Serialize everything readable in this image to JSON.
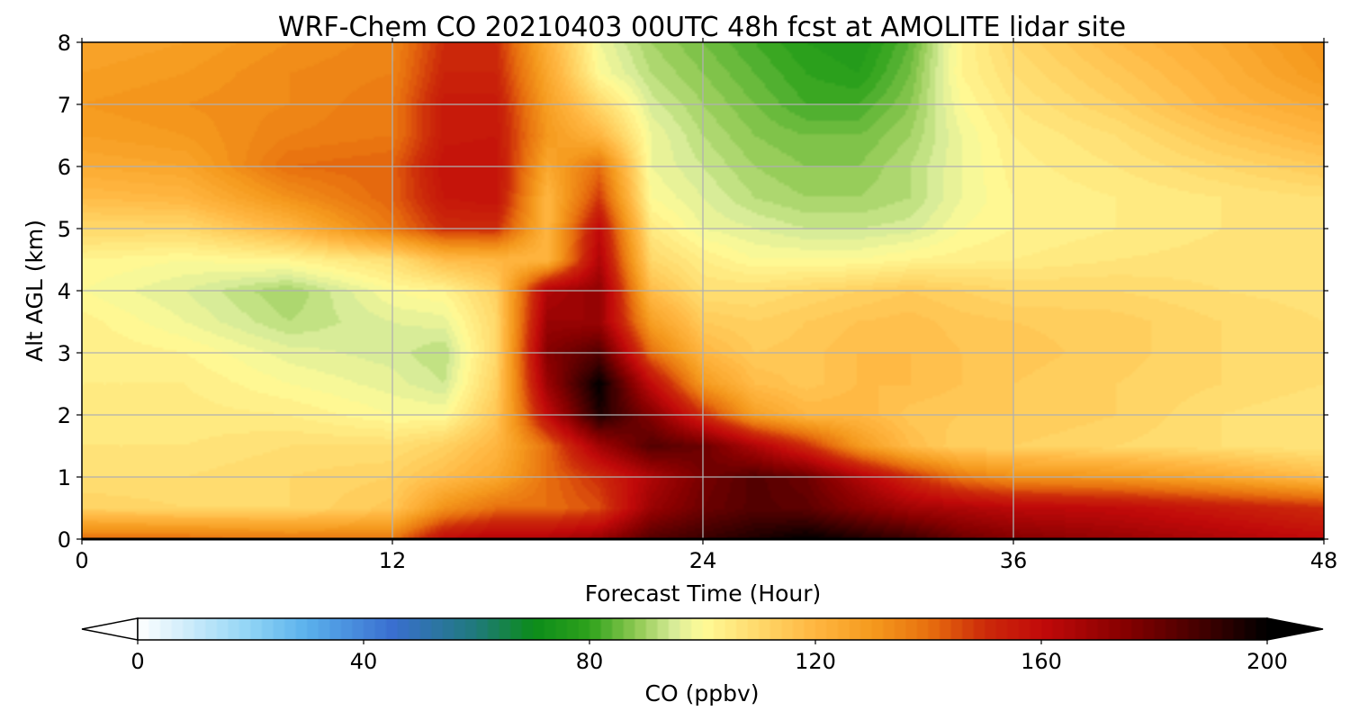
{
  "chart_data": {
    "type": "heatmap",
    "title": "WRF-Chem CO  20210403 00UTC 48h fcst at AMOLITE lidar site",
    "xlabel": "Forecast Time (Hour)",
    "ylabel": "Alt AGL (km)",
    "xlim": [
      0,
      48
    ],
    "ylim": [
      0,
      8
    ],
    "x_ticks": [
      0,
      12,
      24,
      36,
      48
    ],
    "y_ticks": [
      0,
      1,
      2,
      3,
      4,
      5,
      6,
      7,
      8
    ],
    "grid": true,
    "colorbar": {
      "label": "CO  (ppbv)",
      "range": [
        0,
        200
      ],
      "ticks": [
        0,
        40,
        80,
        120,
        160,
        200
      ],
      "extend": "both",
      "orientation": "horizontal",
      "stops": [
        [
          0,
          "#ffffff"
        ],
        [
          20,
          "#8fd4f5"
        ],
        [
          30,
          "#5ab0ec"
        ],
        [
          45,
          "#3a6fd0"
        ],
        [
          60,
          "#1f7a7a"
        ],
        [
          70,
          "#0c8c1a"
        ],
        [
          80,
          "#2ea21c"
        ],
        [
          88,
          "#8cc850"
        ],
        [
          95,
          "#d8ec98"
        ],
        [
          100,
          "#fffb98"
        ],
        [
          110,
          "#ffd86a"
        ],
        [
          120,
          "#ffb640"
        ],
        [
          130,
          "#f59a1e"
        ],
        [
          140,
          "#e8700e"
        ],
        [
          150,
          "#cc2a0a"
        ],
        [
          160,
          "#c20a0a"
        ],
        [
          175,
          "#850000"
        ],
        [
          190,
          "#3a0000"
        ],
        [
          200,
          "#000000"
        ]
      ]
    },
    "x": [
      0,
      4,
      8,
      12,
      14,
      16,
      18,
      20,
      22,
      24,
      26,
      28,
      30,
      32,
      34,
      36,
      40,
      44,
      48
    ],
    "y": [
      0,
      0.5,
      1,
      1.5,
      2,
      2.5,
      3,
      3.5,
      4,
      4.5,
      5,
      5.5,
      6,
      6.5,
      7,
      7.5,
      8
    ],
    "values": [
      [
        140,
        140,
        138,
        138,
        160,
        165,
        165,
        170,
        185,
        190,
        195,
        200,
        195,
        190,
        180,
        175,
        170,
        165,
        160
      ],
      [
        112,
        110,
        110,
        115,
        132,
        140,
        140,
        145,
        170,
        180,
        185,
        183,
        175,
        168,
        165,
        162,
        160,
        155,
        150
      ],
      [
        108,
        108,
        110,
        112,
        118,
        125,
        140,
        150,
        165,
        178,
        185,
        180,
        165,
        150,
        138,
        132,
        130,
        125,
        118
      ],
      [
        106,
        106,
        108,
        108,
        112,
        120,
        140,
        168,
        185,
        180,
        165,
        150,
        130,
        118,
        112,
        112,
        110,
        108,
        106
      ],
      [
        105,
        105,
        104,
        100,
        100,
        115,
        160,
        195,
        175,
        150,
        128,
        120,
        120,
        115,
        114,
        114,
        112,
        108,
        106
      ],
      [
        104,
        104,
        100,
        97,
        94,
        112,
        170,
        200,
        160,
        130,
        118,
        115,
        118,
        118,
        116,
        114,
        112,
        110,
        108
      ],
      [
        104,
        102,
        97,
        95,
        92,
        110,
        175,
        185,
        140,
        120,
        114,
        115,
        118,
        118,
        116,
        115,
        113,
        110,
        108
      ],
      [
        103,
        98,
        92,
        96,
        97,
        110,
        170,
        170,
        128,
        114,
        112,
        114,
        116,
        117,
        115,
        114,
        113,
        110,
        108
      ],
      [
        100,
        96,
        90,
        100,
        102,
        112,
        165,
        172,
        118,
        108,
        108,
        110,
        112,
        114,
        112,
        110,
        110,
        108,
        107
      ],
      [
        102,
        100,
        102,
        108,
        118,
        120,
        120,
        165,
        110,
        104,
        100,
        100,
        100,
        102,
        103,
        104,
        106,
        107,
        106
      ],
      [
        110,
        110,
        120,
        138,
        150,
        150,
        120,
        160,
        105,
        98,
        96,
        94,
        94,
        95,
        100,
        102,
        104,
        106,
        106
      ],
      [
        118,
        120,
        132,
        142,
        156,
        158,
        120,
        148,
        100,
        96,
        92,
        90,
        90,
        92,
        98,
        102,
        104,
        106,
        108
      ],
      [
        124,
        126,
        140,
        142,
        158,
        158,
        125,
        140,
        98,
        94,
        90,
        88,
        88,
        92,
        98,
        103,
        106,
        110,
        114
      ],
      [
        128,
        130,
        136,
        138,
        155,
        156,
        130,
        120,
        98,
        92,
        88,
        86,
        86,
        90,
        98,
        104,
        108,
        115,
        120
      ],
      [
        130,
        132,
        134,
        138,
        155,
        155,
        128,
        110,
        95,
        90,
        86,
        82,
        82,
        88,
        100,
        106,
        112,
        120,
        125
      ],
      [
        128,
        130,
        134,
        136,
        152,
        152,
        125,
        100,
        92,
        88,
        84,
        80,
        78,
        86,
        102,
        108,
        115,
        122,
        130
      ],
      [
        126,
        128,
        132,
        135,
        150,
        150,
        122,
        98,
        90,
        86,
        82,
        78,
        76,
        84,
        102,
        110,
        118,
        124,
        132
      ]
    ]
  }
}
